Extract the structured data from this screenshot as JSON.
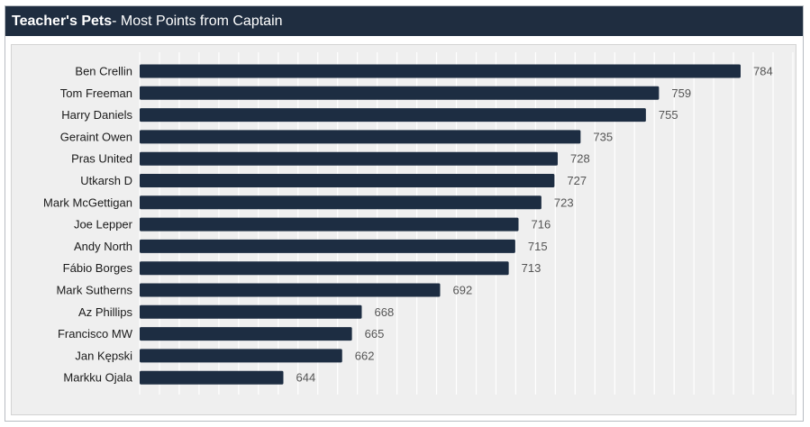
{
  "header": {
    "title_bold": "Teacher's Pets",
    "title_rest": " - Most Points from Captain"
  },
  "colors": {
    "header_bg": "#1f2d40",
    "bar": "#1d2d42",
    "label": "#1a1a1a",
    "value_label": "#555555"
  },
  "chart_data": {
    "type": "bar",
    "orientation": "horizontal",
    "title": "Teacher's Pets - Most Points from Captain",
    "xlabel": "",
    "ylabel": "",
    "grid": true,
    "xlim": [
      600,
      800
    ],
    "categories": [
      "Ben Crellin",
      "Tom Freeman",
      "Harry Daniels",
      "Geraint Owen",
      "Pras United",
      "Utkarsh D",
      "Mark McGettigan",
      "Joe Lepper",
      "Andy North",
      "Fábio Borges",
      "Mark Sutherns",
      "Az Phillips",
      "Francisco MW",
      "Jan Kępski",
      "Markku Ojala"
    ],
    "values": [
      784,
      759,
      755,
      735,
      728,
      727,
      723,
      716,
      715,
      713,
      692,
      668,
      665,
      662,
      644
    ]
  }
}
